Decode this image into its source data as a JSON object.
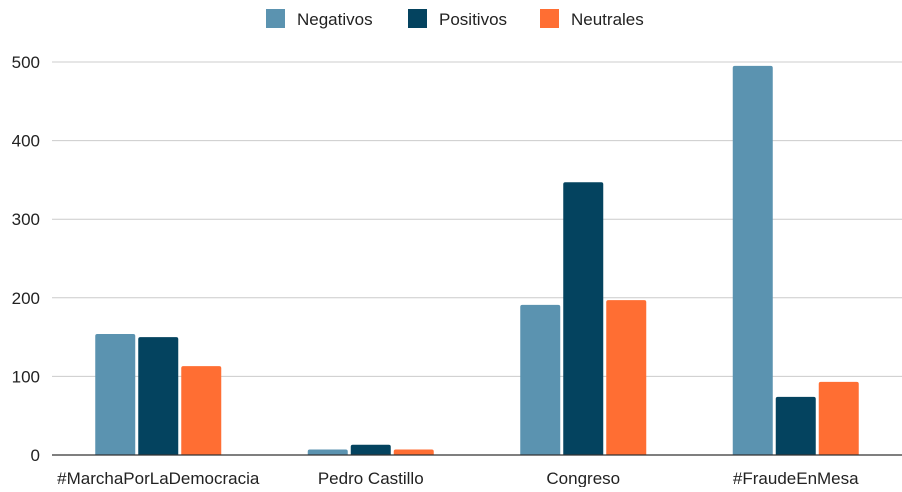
{
  "chart_data": {
    "type": "bar",
    "title": "",
    "xlabel": "",
    "ylabel": "",
    "categories": [
      "#MarchaPorLaDemocracia",
      "Pedro Castillo",
      "Congreso",
      "#FraudeEnMesa"
    ],
    "series": [
      {
        "name": "Negativos",
        "color": "#5b93b0",
        "values": [
          154,
          7,
          191,
          495
        ]
      },
      {
        "name": "Positivos",
        "color": "#04435f",
        "values": [
          150,
          13,
          347,
          74
        ]
      },
      {
        "name": "Neutrales",
        "color": "#ff6e33",
        "values": [
          113,
          7,
          197,
          93
        ]
      }
    ],
    "ylim": [
      0,
      500
    ],
    "yticks": [
      "0",
      "100",
      "200",
      "300",
      "400",
      "500"
    ],
    "grid": true,
    "legend_position": "top-center"
  }
}
